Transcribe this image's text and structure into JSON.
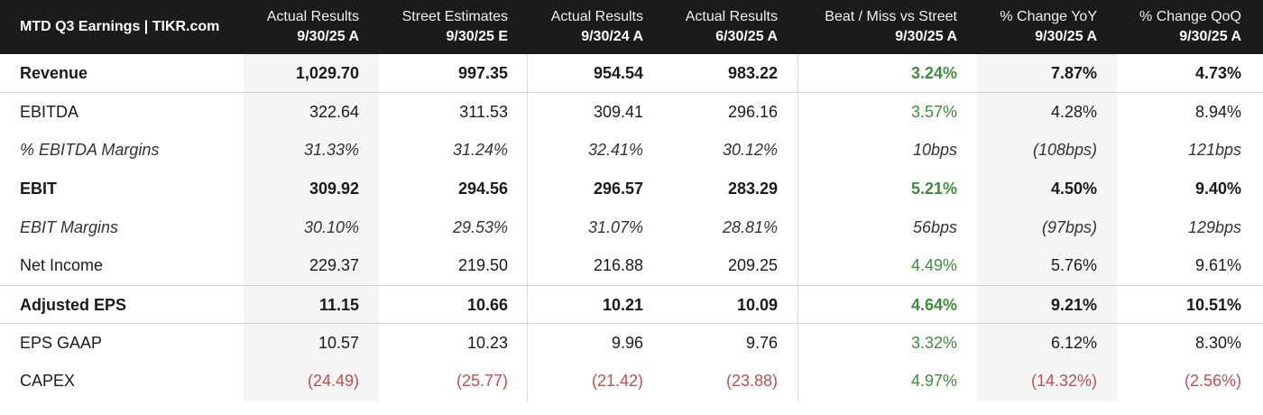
{
  "table": {
    "title": "MTD Q3 Earnings | TIKR.com",
    "columns": [
      {
        "line1": "Actual Results",
        "line2": "9/30/25 A"
      },
      {
        "line1": "Street Estimates",
        "line2": "9/30/25 E"
      },
      {
        "line1": "Actual Results",
        "line2": "9/30/24 A"
      },
      {
        "line1": "Actual Results",
        "line2": "6/30/25 A"
      },
      {
        "line1": "Beat / Miss vs Street",
        "line2": "9/30/25 A"
      },
      {
        "line1": "% Change YoY",
        "line2": "9/30/25 A"
      },
      {
        "line1": "% Change QoQ",
        "line2": "9/30/25 A"
      }
    ],
    "rows": [
      {
        "label": "Revenue",
        "values": [
          "1,029.70",
          "997.35",
          "954.54",
          "983.22",
          "3.24%",
          "7.87%",
          "4.73%"
        ]
      },
      {
        "label": "EBITDA",
        "values": [
          "322.64",
          "311.53",
          "309.41",
          "296.16",
          "3.57%",
          "4.28%",
          "8.94%"
        ]
      },
      {
        "label": "% EBITDA Margins",
        "values": [
          "31.33%",
          "31.24%",
          "32.41%",
          "30.12%",
          "10bps",
          "(108bps)",
          "121bps"
        ]
      },
      {
        "label": "EBIT",
        "values": [
          "309.92",
          "294.56",
          "296.57",
          "283.29",
          "5.21%",
          "4.50%",
          "9.40%"
        ]
      },
      {
        "label": "EBIT Margins",
        "values": [
          "30.10%",
          "29.53%",
          "31.07%",
          "28.81%",
          "56bps",
          "(97bps)",
          "129bps"
        ]
      },
      {
        "label": "Net Income",
        "values": [
          "229.37",
          "219.50",
          "216.88",
          "209.25",
          "4.49%",
          "5.76%",
          "9.61%"
        ]
      },
      {
        "label": "Adjusted EPS",
        "values": [
          "11.15",
          "10.66",
          "10.21",
          "10.09",
          "4.64%",
          "9.21%",
          "10.51%"
        ]
      },
      {
        "label": "EPS GAAP",
        "values": [
          "10.57",
          "10.23",
          "9.96",
          "9.76",
          "3.32%",
          "6.12%",
          "8.30%"
        ]
      },
      {
        "label": "CAPEX",
        "values": [
          "(24.49)",
          "(25.77)",
          "(21.42)",
          "(23.88)",
          "4.97%",
          "(14.32%)",
          "(2.56%)"
        ]
      }
    ]
  },
  "colors": {
    "header_bg": "#1b1b1b",
    "beat_green": "#3e8d3e",
    "negative_red": "#c0504d",
    "shaded_column": "#f5f5f5"
  }
}
